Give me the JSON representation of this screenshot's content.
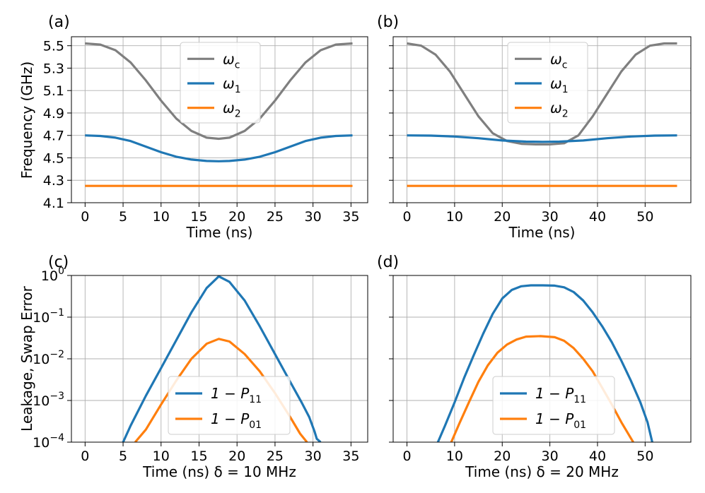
{
  "chart_data": [
    {
      "panel": "(a)",
      "type": "line",
      "title": "",
      "xlabel": "Time (ns)",
      "ylabel": "Frequency (GHz)",
      "xlim": [
        -1.8,
        37.2
      ],
      "ylim": [
        4.1,
        5.58
      ],
      "xticks": [
        "0",
        "5",
        "10",
        "15",
        "20",
        "25",
        "30",
        "35"
      ],
      "yticks": [
        "4.1",
        "4.3",
        "4.5",
        "4.7",
        "4.9",
        "5.1",
        "5.3",
        "5.5"
      ],
      "grid": true,
      "legend": "top-center",
      "series": [
        {
          "name": "ω_c",
          "label_base": "ω",
          "label_sub": "c",
          "color": "#7f7f7f",
          "x": [
            0,
            2,
            4,
            6,
            8,
            10,
            12,
            14,
            16,
            17.6,
            19,
            21,
            23,
            25,
            27,
            29,
            31,
            33,
            35.2
          ],
          "y": [
            5.52,
            5.51,
            5.46,
            5.35,
            5.19,
            5.01,
            4.85,
            4.74,
            4.68,
            4.67,
            4.68,
            4.74,
            4.85,
            5.01,
            5.19,
            5.35,
            5.46,
            5.51,
            5.52
          ]
        },
        {
          "name": "ω_1",
          "label_base": "ω",
          "label_sub": "1",
          "color": "#1f77b4",
          "x": [
            0,
            2,
            4,
            6,
            8,
            10,
            12,
            14,
            16,
            17.6,
            19,
            21,
            23,
            25,
            27,
            29,
            31,
            33,
            35.2
          ],
          "y": [
            4.7,
            4.695,
            4.68,
            4.65,
            4.6,
            4.55,
            4.51,
            4.485,
            4.472,
            4.47,
            4.472,
            4.485,
            4.51,
            4.55,
            4.6,
            4.65,
            4.68,
            4.695,
            4.7
          ]
        },
        {
          "name": "ω_2",
          "label_base": "ω",
          "label_sub": "2",
          "color": "#ff7f0e",
          "x": [
            0,
            35.2
          ],
          "y": [
            4.25,
            4.25
          ]
        }
      ]
    },
    {
      "panel": "(b)",
      "type": "line",
      "title": "",
      "xlabel": "Time (ns)",
      "ylabel": "",
      "xlim": [
        -2.9,
        59.6
      ],
      "ylim": [
        4.1,
        5.58
      ],
      "xticks": [
        "0",
        "10",
        "20",
        "30",
        "40",
        "50"
      ],
      "yticks": [],
      "grid": true,
      "legend": "top-center",
      "series": [
        {
          "name": "ω_c",
          "label_base": "ω",
          "label_sub": "c",
          "color": "#7f7f7f",
          "x": [
            0,
            3,
            6,
            9,
            12,
            15,
            18,
            21,
            24,
            27,
            28.5,
            30,
            33,
            36,
            39,
            42,
            45,
            48,
            51,
            54,
            56.7
          ],
          "y": [
            5.52,
            5.5,
            5.42,
            5.27,
            5.07,
            4.87,
            4.72,
            4.65,
            4.625,
            4.62,
            4.62,
            4.62,
            4.63,
            4.7,
            4.87,
            5.07,
            5.27,
            5.42,
            5.5,
            5.52,
            5.52
          ]
        },
        {
          "name": "ω_1",
          "label_base": "ω",
          "label_sub": "1",
          "color": "#1f77b4",
          "x": [
            0,
            5,
            10,
            15,
            20,
            25,
            28.5,
            32,
            37,
            42,
            47,
            52,
            56.7
          ],
          "y": [
            4.7,
            4.698,
            4.69,
            4.675,
            4.655,
            4.645,
            4.643,
            4.645,
            4.655,
            4.675,
            4.69,
            4.698,
            4.7
          ]
        },
        {
          "name": "ω_2",
          "label_base": "ω",
          "label_sub": "2",
          "color": "#ff7f0e",
          "x": [
            0,
            56.7
          ],
          "y": [
            4.25,
            4.25
          ]
        }
      ]
    },
    {
      "panel": "(c)",
      "type": "line",
      "title": "",
      "xlabel": "Time (ns) δ = 10 MHz",
      "ylabel": "Leakage, Swap Error",
      "yscale": "log",
      "xlim": [
        -1.8,
        37.2
      ],
      "ylim": [
        0.0001,
        1
      ],
      "xticks": [
        "0",
        "5",
        "10",
        "15",
        "20",
        "25",
        "30",
        "35"
      ],
      "yticks": [
        {
          "base": "10",
          "exp": "−4"
        },
        {
          "base": "10",
          "exp": "−3"
        },
        {
          "base": "10",
          "exp": "−2"
        },
        {
          "base": "10",
          "exp": "−1"
        },
        {
          "base": "10",
          "exp": "0"
        }
      ],
      "grid": true,
      "legend": "bottom-center",
      "series": [
        {
          "name": "1 − P_11",
          "label_base": "1 − P",
          "label_sub": "11",
          "color": "#1f77b4",
          "x": [
            5.0,
            6,
            8,
            10,
            12,
            14,
            16,
            17.6,
            19,
            21,
            23,
            25,
            27,
            28.5,
            29.5,
            30.2,
            30.5,
            31
          ],
          "y": [
            0.0001,
            0.00025,
            0.0013,
            0.006,
            0.028,
            0.13,
            0.5,
            0.95,
            0.7,
            0.25,
            0.06,
            0.013,
            0.0028,
            0.0009,
            0.0004,
            0.00018,
            0.00012,
            0.0001
          ]
        },
        {
          "name": "1 − P_01",
          "label_base": "1 − P",
          "label_sub": "01",
          "color": "#ff7f0e",
          "x": [
            6.6,
            8,
            10,
            12,
            14,
            16,
            17.6,
            19,
            21,
            23,
            25,
            27,
            28.3,
            29.2
          ],
          "y": [
            0.0001,
            0.0002,
            0.0008,
            0.003,
            0.01,
            0.023,
            0.03,
            0.026,
            0.013,
            0.005,
            0.0015,
            0.0004,
            0.00016,
            0.0001
          ]
        }
      ]
    },
    {
      "panel": "(d)",
      "type": "line",
      "title": "",
      "xlabel": "Time (ns) δ = 20 MHz",
      "ylabel": "",
      "yscale": "log",
      "xlim": [
        -2.9,
        59.6
      ],
      "ylim": [
        0.0001,
        1
      ],
      "xticks": [
        "0",
        "10",
        "20",
        "30",
        "40",
        "50"
      ],
      "yticks": [],
      "grid": true,
      "legend": "bottom-center",
      "series": [
        {
          "name": "1 − P_11",
          "label_base": "1 − P",
          "label_sub": "11",
          "color": "#1f77b4",
          "x": [
            6.5,
            8,
            10,
            12,
            14,
            16,
            18,
            20,
            22,
            24,
            26,
            28.5,
            31,
            33,
            35,
            37,
            39,
            41,
            43,
            45,
            47,
            49,
            50.5,
            51.5
          ],
          "y": [
            0.0001,
            0.00025,
            0.0009,
            0.0035,
            0.012,
            0.04,
            0.12,
            0.28,
            0.45,
            0.55,
            0.58,
            0.58,
            0.57,
            0.52,
            0.4,
            0.25,
            0.13,
            0.06,
            0.025,
            0.009,
            0.003,
            0.0009,
            0.0003,
            0.0001
          ]
        },
        {
          "name": "1 − P_01",
          "label_base": "1 − P",
          "label_sub": "01",
          "color": "#ff7f0e",
          "x": [
            9.3,
            11,
            13,
            15,
            17,
            19,
            21,
            23,
            25,
            28,
            31,
            33,
            35,
            37,
            39,
            41,
            43,
            45,
            47.5
          ],
          "y": [
            0.0001,
            0.00028,
            0.0009,
            0.0028,
            0.007,
            0.014,
            0.022,
            0.029,
            0.034,
            0.035,
            0.033,
            0.027,
            0.018,
            0.01,
            0.005,
            0.002,
            0.0008,
            0.0003,
            0.0001
          ]
        }
      ]
    }
  ]
}
